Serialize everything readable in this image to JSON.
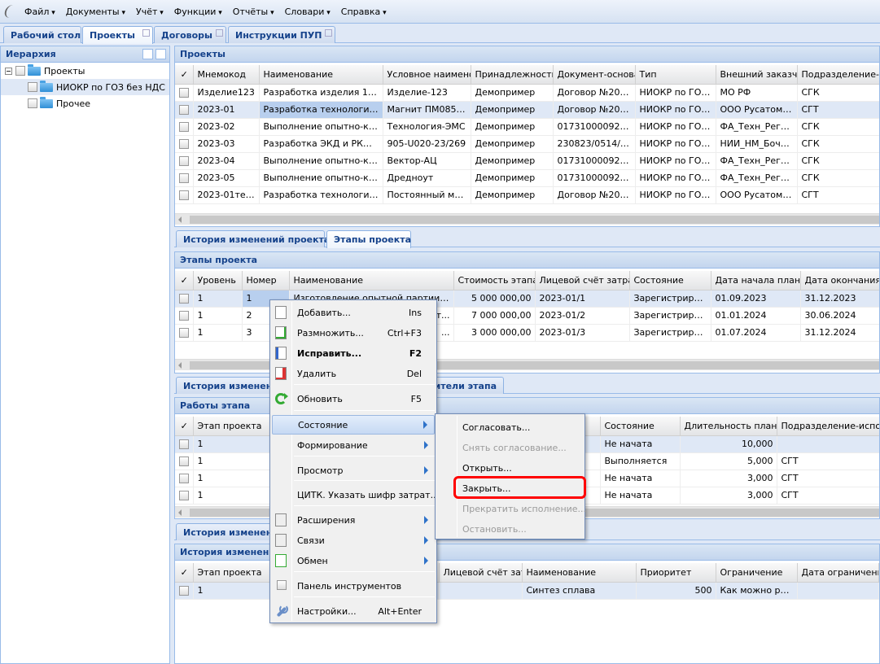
{
  "menubar": {
    "items": [
      "Файл",
      "Документы",
      "Учёт",
      "Функции",
      "Отчёты",
      "Словари",
      "Справка"
    ]
  },
  "tabs": [
    {
      "label": "Рабочий стол"
    },
    {
      "label": "Проекты",
      "active": true
    },
    {
      "label": "Договоры"
    },
    {
      "label": "Инструкции ПУП"
    }
  ],
  "hierarchy": {
    "title": "Иерархия",
    "root": "Проекты",
    "children": [
      "НИОКР по ГОЗ без НДС",
      "Прочее"
    ]
  },
  "projects": {
    "title": "Проекты",
    "columns": [
      "✓",
      "Мнемокод",
      "Наименование",
      "Условное наименование",
      "Принадлежность",
      "Документ-основание",
      "Тип",
      "Внешний заказчик",
      "Подразделение-ответственный"
    ],
    "rows": [
      [
        "",
        "Изделие123",
        "Разработка изделия 123",
        "Изделие-123",
        "Демопример",
        "Договор №202...",
        "НИОКР по ГОЗ ...",
        "МО РФ",
        "СГК"
      ],
      [
        "",
        "2023-01",
        "Разработка технологии и...",
        "Магнит ПМ085-01",
        "Демопример",
        "Договор №202...",
        "НИОКР по ГОЗ ...",
        "ООО Русатом ...",
        "СГТ"
      ],
      [
        "",
        "2023-02",
        "Выполнение опытно-конс...",
        "Технология-ЭМС",
        "Демопример",
        "017310000922...",
        "НИОКР по ГОЗ ...",
        "ФА_Техн_Рег_...",
        "СГК"
      ],
      [
        "",
        "2023-03",
        "Разработка ЭКД и РКД н...",
        "905-U020-23/269",
        "Демопример",
        "230823/0514/136",
        "НИОКР по ГОЗ ...",
        "НИИ_НМ_Бочв...",
        "СГК"
      ],
      [
        "",
        "2023-04",
        "Выполнение опытно-конс...",
        "Вектор-АЦ",
        "Демопример",
        "017310000922...",
        "НИОКР по ГОЗ ...",
        "ФА_Техн_Рег_...",
        "СГК"
      ],
      [
        "",
        "2023-05",
        "Выполнение опытно-конс...",
        "Дредноут",
        "Демопример",
        "017310000922...",
        "НИОКР по ГОЗ ...",
        "ФА_Техн_Рег_...",
        "СГК"
      ],
      [
        "",
        "2023-01тест",
        "Разработка технологии и...",
        "Постоянный маг...",
        "Демопример",
        "Договор №202...",
        "НИОКР по ГОЗ ...",
        "ООО Русатом ...",
        "СГТ"
      ]
    ]
  },
  "project_tabs": [
    "История изменений проекта",
    "Этапы проекта"
  ],
  "stages": {
    "title": "Этапы проекта",
    "columns": [
      "✓",
      "Уровень",
      "Номер",
      "Наименование",
      "Стоимость этапа",
      "Лицевой счёт затрат",
      "Состояние",
      "Дата начала план",
      "Дата окончания план"
    ],
    "rows": [
      [
        "",
        "1",
        "1",
        "Изготовление опытной партии ПМ0...",
        "5 000 000,00",
        "2023-01/1",
        "Зарегистрирован",
        "01.09.2023",
        "31.12.2023"
      ],
      [
        "",
        "1",
        "2",
        "...т...",
        "7 000 000,00",
        "2023-01/2",
        "Зарегистрирован",
        "01.01.2024",
        "30.06.2024"
      ],
      [
        "",
        "1",
        "3",
        "...",
        "3 000 000,00",
        "2023-01/3",
        "Зарегистрирован",
        "01.07.2024",
        "31.12.2024"
      ]
    ]
  },
  "stage_tabs": [
    "История изменени",
    "ители этапа"
  ],
  "works": {
    "title": "Работы этапа",
    "columns": [
      "✓",
      "Этап проекта",
      "",
      "",
      "Состояние",
      "Длительность план",
      "Подразделение-исполнитель"
    ],
    "rows": [
      [
        "",
        "1",
        "",
        "",
        "Не начата",
        "10,000",
        ""
      ],
      [
        "",
        "1",
        "",
        "",
        "Выполняется",
        "5,000",
        "СГТ"
      ],
      [
        "",
        "1",
        "",
        "",
        "Не начата",
        "3,000",
        "СГТ"
      ],
      [
        "",
        "1",
        "",
        "",
        "Не начата",
        "3,000",
        "СГТ"
      ]
    ]
  },
  "history_tab": "История изменени",
  "history": {
    "title": "История изменени",
    "columns": [
      "✓",
      "Этап проекта",
      "Лицевой счёт затр",
      "Наименование",
      "Приоритет",
      "Ограничение",
      "Дата ограничения"
    ],
    "rows": [
      [
        "",
        "1",
        "",
        "Синтез сплава",
        "500",
        "Как можно ран...",
        ""
      ]
    ]
  },
  "context_menu": {
    "items": [
      {
        "label": "Добавить...",
        "shortcut": "Ins",
        "icon": "document-icon"
      },
      {
        "label": "Размножить...",
        "shortcut": "Ctrl+F3",
        "icon": "document-add-icon"
      },
      {
        "label": "Исправить...",
        "shortcut": "F2",
        "icon": "document-edit-icon",
        "bold": true
      },
      {
        "label": "Удалить",
        "shortcut": "Del",
        "icon": "document-delete-icon"
      },
      {
        "label": "Обновить",
        "shortcut": "F5",
        "icon": "refresh-icon"
      },
      {
        "label": "Состояние",
        "submenu": true,
        "highlighted": true
      },
      {
        "label": "Формирование",
        "submenu": true
      },
      {
        "label": "Просмотр",
        "submenu": true
      },
      {
        "label": "ЦИТК. Указать шифр затрат..."
      },
      {
        "label": "Расширения",
        "submenu": true,
        "icon": "extensions-icon"
      },
      {
        "label": "Связи",
        "submenu": true,
        "icon": "links-icon"
      },
      {
        "label": "Обмен",
        "submenu": true,
        "icon": "exchange-icon"
      },
      {
        "label": "Панель инструментов",
        "icon": "checkbox-icon"
      },
      {
        "label": "Настройки...",
        "shortcut": "Alt+Enter",
        "icon": "wrench-icon"
      }
    ]
  },
  "submenu": {
    "items": [
      {
        "label": "Согласовать...",
        "disabled": false
      },
      {
        "label": "Снять согласование...",
        "disabled": true
      },
      {
        "label": "Открыть...",
        "disabled": false
      },
      {
        "label": "Закрыть...",
        "disabled": false,
        "highlighted_box": true
      },
      {
        "label": "Прекратить исполнение...",
        "disabled": true
      },
      {
        "label": "Остановить...",
        "disabled": true
      }
    ]
  },
  "colors": {
    "accent": "#15428b",
    "highlight_box": "#ff0000",
    "selected_row": "#dfe8f6"
  }
}
